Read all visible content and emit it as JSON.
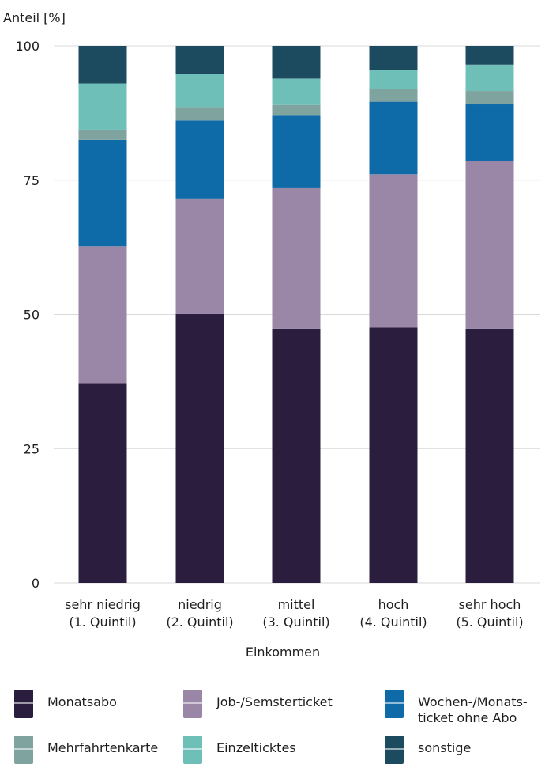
{
  "chart_data": {
    "type": "bar",
    "stacked": true,
    "ylabel": "Anteil [%]",
    "xlabel": "Einkommen",
    "ylim": [
      0,
      100
    ],
    "yticks": [
      0,
      25,
      50,
      75,
      100
    ],
    "grid": true,
    "legend_position": "bottom",
    "categories": [
      "sehr niedrig\n(1. Quintil)",
      "niedrig\n(2. Quintil)",
      "mittel\n(3. Quintil)",
      "hoch\n(4. Quintil)",
      "sehr hoch\n(5. Quintil)"
    ],
    "series": [
      {
        "name": "Monatsabo",
        "color": "#2b1d3d",
        "values": [
          37.2,
          50.1,
          47.3,
          47.5,
          47.3
        ]
      },
      {
        "name": "Job-/Semsterticket",
        "color": "#9a86a7",
        "values": [
          25.5,
          21.5,
          26.2,
          28.6,
          31.2
        ]
      },
      {
        "name": "Wochen-/Monats-\nticket ohne Abo",
        "color": "#0f6aa8",
        "values": [
          19.8,
          14.5,
          13.5,
          13.5,
          10.6
        ]
      },
      {
        "name": "Mehrfahrtenkarte",
        "color": "#7fa39e",
        "values": [
          1.9,
          2.5,
          2.0,
          2.3,
          2.5
        ]
      },
      {
        "name": "Einzeltickets",
        "color": "#6fbfb9",
        "values": [
          8.6,
          6.1,
          4.9,
          3.6,
          4.9
        ]
      },
      {
        "name": "sonstige",
        "color": "#1c4a5e",
        "values": [
          7.0,
          5.3,
          6.1,
          4.5,
          3.5
        ]
      }
    ],
    "legend_labels": [
      "Monatsabo",
      "Job-/Semsterticket",
      "Wochen-/Monats-\nticket ohne Abo",
      "Mehrfahrtenkarte",
      "Einzelticktes",
      "sonstige"
    ]
  }
}
